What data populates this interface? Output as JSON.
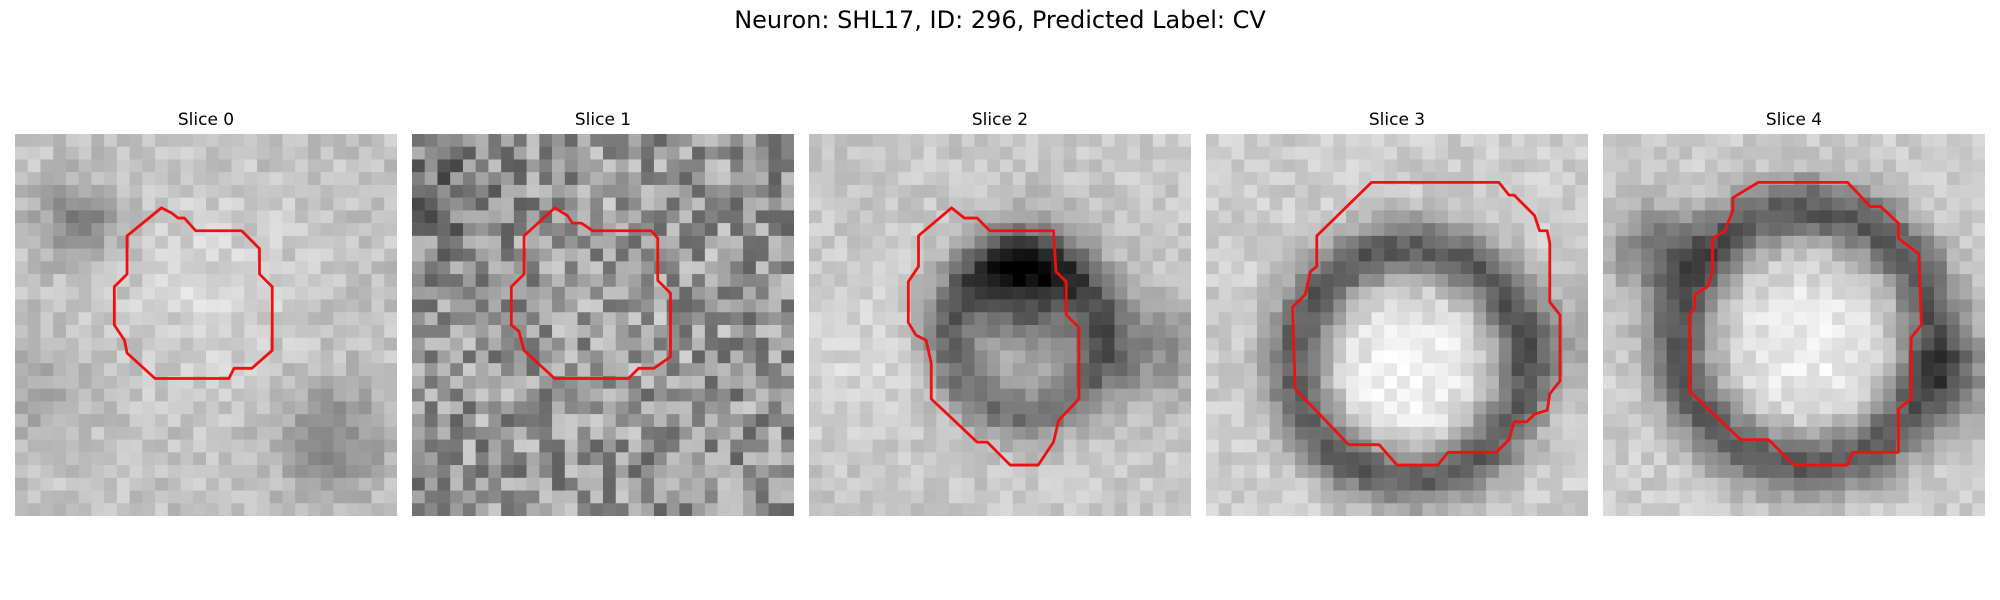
{
  "figure": {
    "title": "Neuron: SHL17, ID: 296, Predicted Label: CV"
  },
  "colors": {
    "outline": "#ee1111"
  },
  "panels": [
    {
      "title": "Slice 0"
    },
    {
      "title": "Slice 1"
    },
    {
      "title": "Slice 2"
    },
    {
      "title": "Slice 3"
    },
    {
      "title": "Slice 4"
    }
  ]
}
